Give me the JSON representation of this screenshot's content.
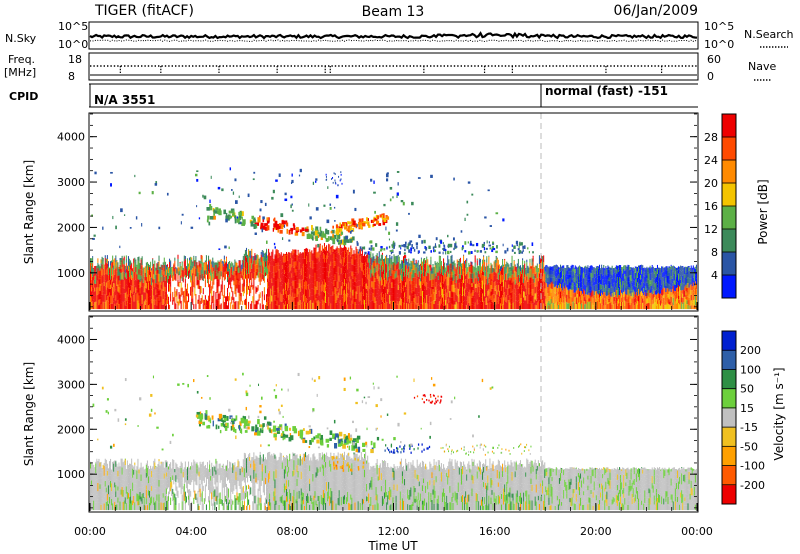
{
  "header": {
    "title": "TIGER (fitACF)",
    "beam": "Beam 13",
    "date": "06/Jan/2009"
  },
  "noise_panel": {
    "left_label": "N.Sky",
    "left_ticks": [
      "10^5",
      "10^0"
    ],
    "right_ticks": [
      "10^5",
      "10^0"
    ],
    "right_label": "N.Search"
  },
  "freq_panel": {
    "left_label_1": "Freq.",
    "left_label_2": "[MHz]",
    "left_ticks": [
      "18",
      "8"
    ],
    "right_ticks": [
      "60",
      "0"
    ],
    "right_label": "Nave"
  },
  "cpid_panel": {
    "label": "CPID",
    "segments": [
      {
        "text": "N/A 3551",
        "start_hour": 0
      },
      {
        "text": "normal (fast) -151",
        "start_hour": 18
      }
    ]
  },
  "colors": {
    "power": [
      "#0018ff",
      "#2a55a5",
      "#3c8a5a",
      "#5cb046",
      "#f4c400",
      "#ff8a00",
      "#ff4a00",
      "#ee0000"
    ],
    "velocity": [
      "#ee0000",
      "#ff5a00",
      "#ffa000",
      "#f0c020",
      "#c0c0c0",
      "#6ccf3c",
      "#2e8f45",
      "#2e5fa8",
      "#0020d0"
    ]
  },
  "chart_data": [
    {
      "type": "heatmap",
      "name": "power",
      "xlabel": "",
      "ylabel": "Slant Range [km]",
      "xlim": [
        0,
        24
      ],
      "ylim": [
        180,
        4500
      ],
      "y_ticks": [
        "1000",
        "2000",
        "3000",
        "4000"
      ],
      "y_tick_values": [
        1000,
        2000,
        3000,
        4000
      ],
      "colorbar_label": "Power [dB]",
      "colorbar_ticks": [
        "4",
        "8",
        "12",
        "16",
        "20",
        "24",
        "28"
      ],
      "colorbar_range": [
        0,
        32
      ],
      "mode_change_hour": 18
    },
    {
      "type": "heatmap",
      "name": "velocity",
      "xlabel": "Time UT",
      "ylabel": "Slant Range [km]",
      "xlim": [
        0,
        24
      ],
      "ylim": [
        180,
        4500
      ],
      "x_ticks": [
        "00:00",
        "04:00",
        "08:00",
        "12:00",
        "16:00",
        "20:00",
        "00:00"
      ],
      "x_tick_hours": [
        0,
        4,
        8,
        12,
        16,
        20,
        24
      ],
      "y_ticks": [
        "1000",
        "2000",
        "3000",
        "4000"
      ],
      "y_tick_values": [
        1000,
        2000,
        3000,
        4000
      ],
      "colorbar_label": "Velocity [m s⁻¹]",
      "colorbar_ticks": [
        "200",
        "100",
        "50",
        "15",
        "-15",
        "-50",
        "-100",
        "-200"
      ],
      "colorbar_range": [
        -250,
        250
      ],
      "mode_change_hour": 18
    }
  ]
}
